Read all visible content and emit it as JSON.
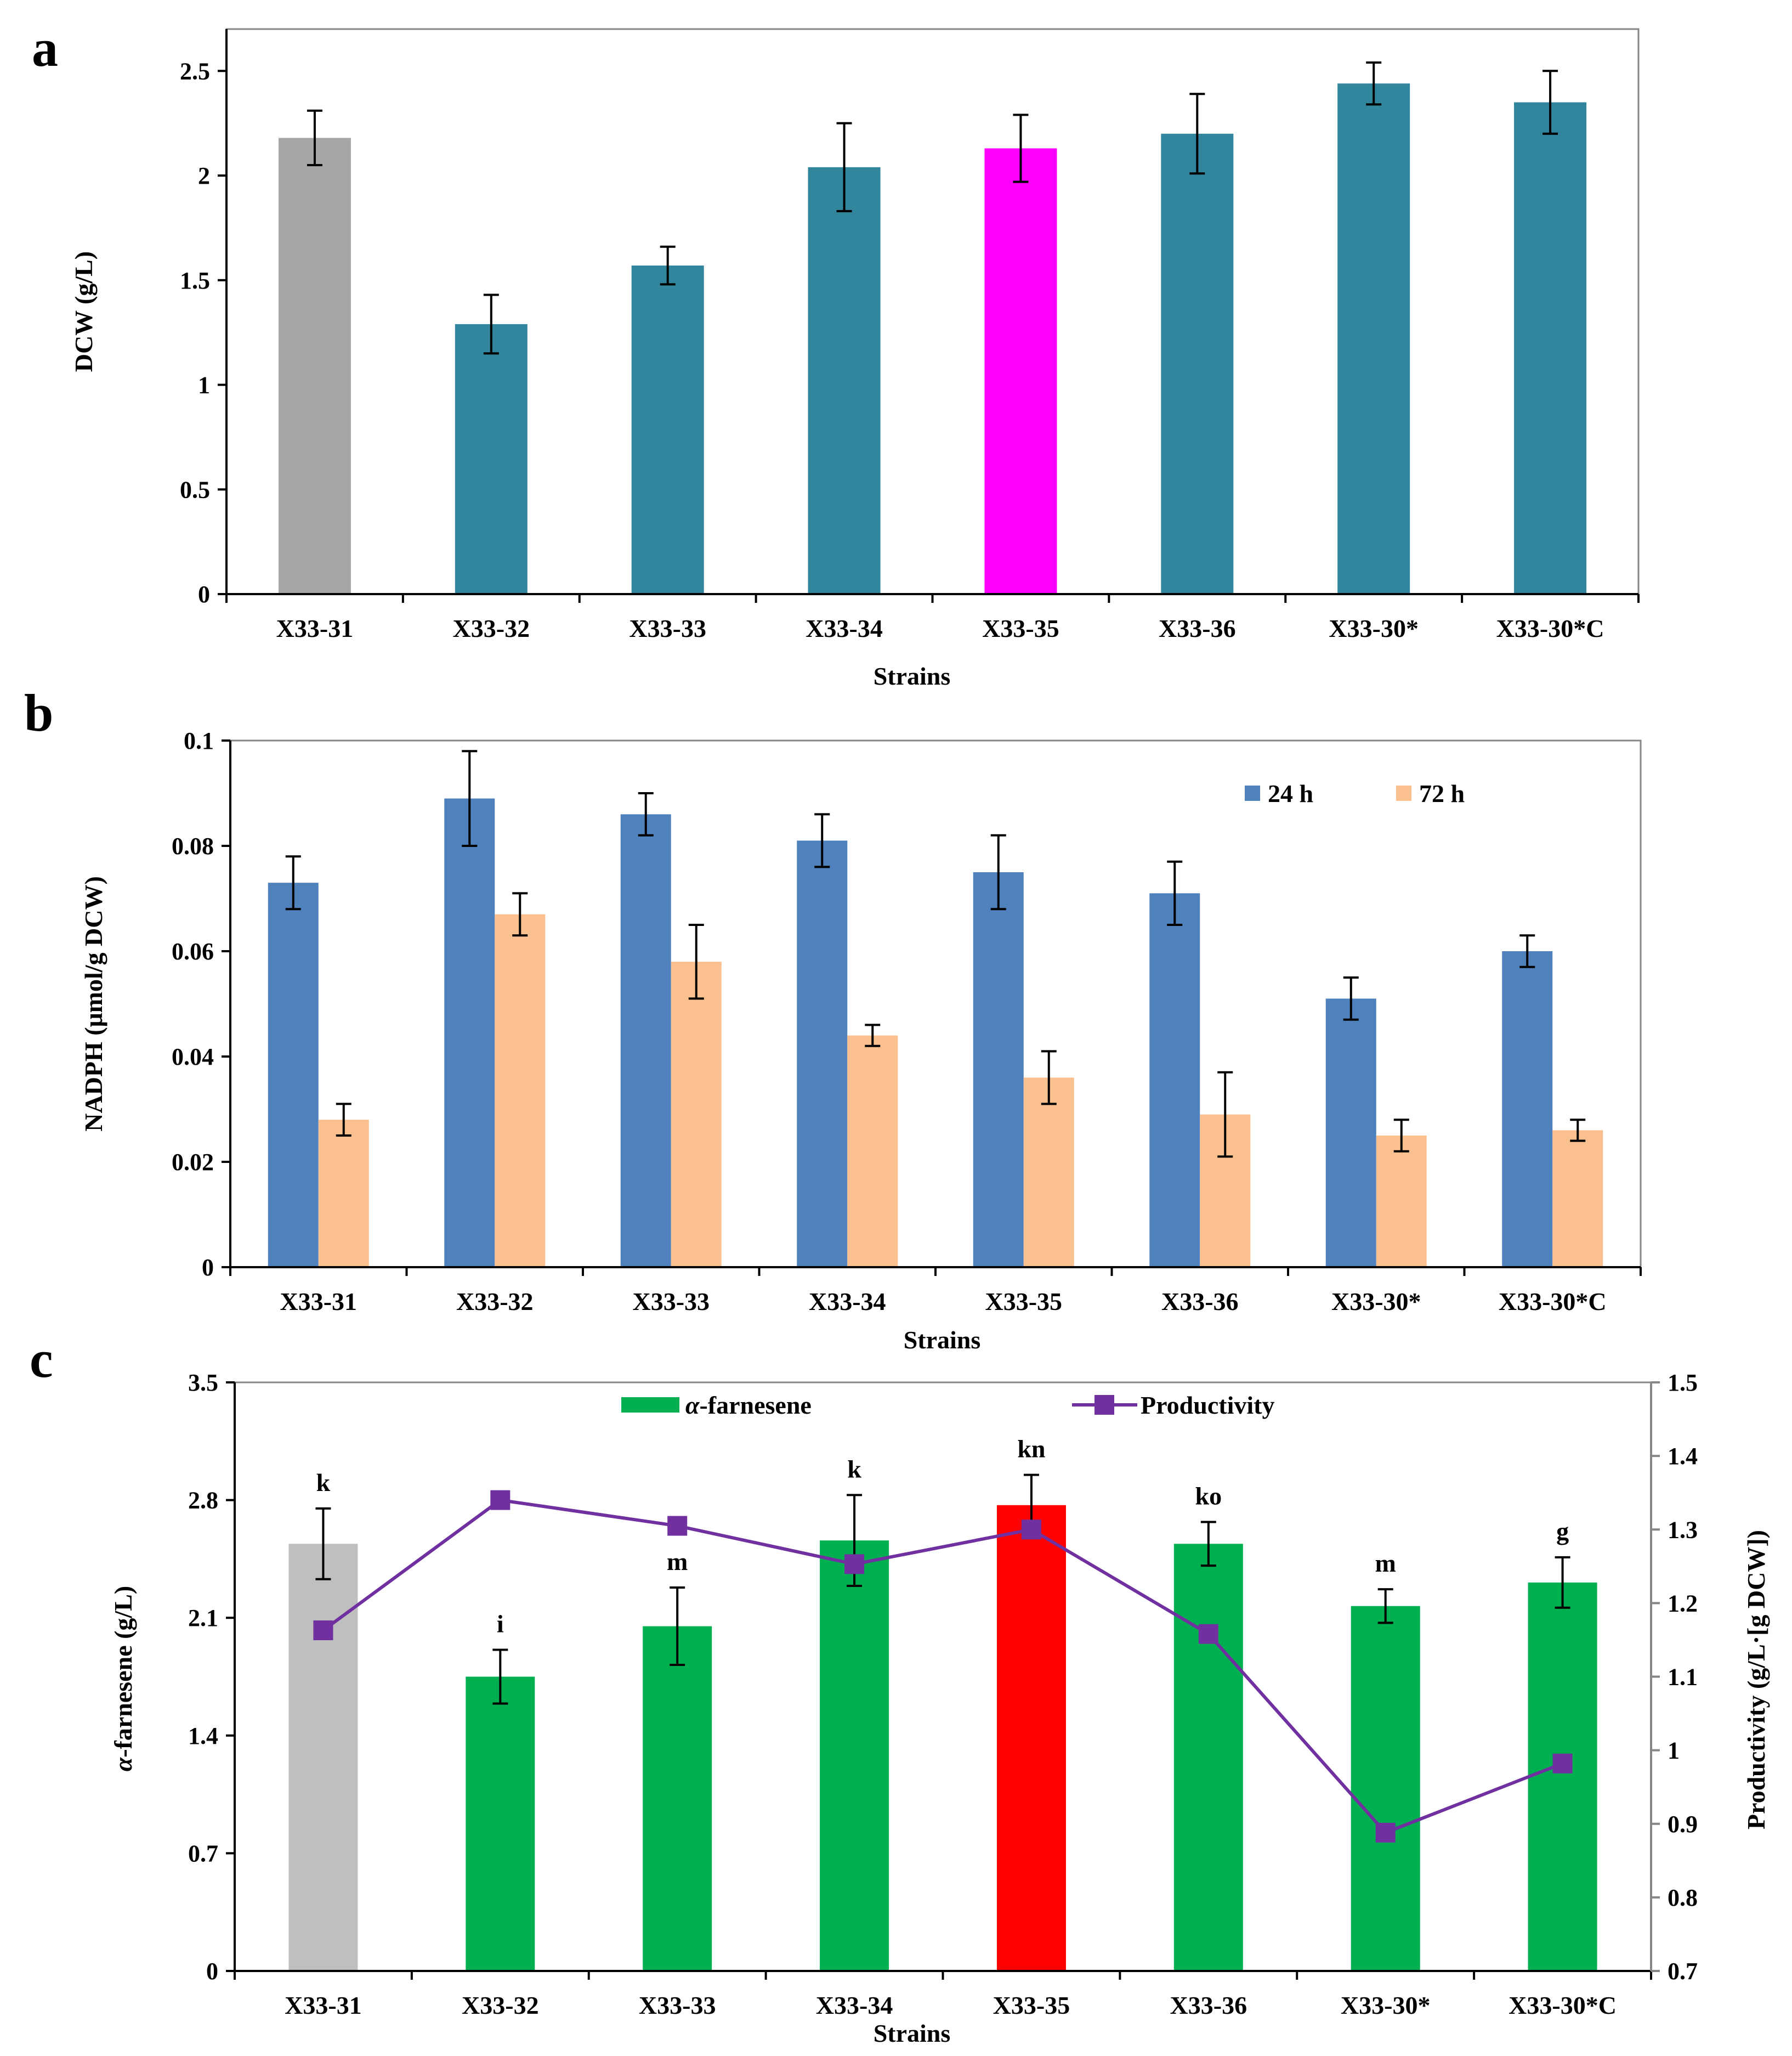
{
  "chart_data": [
    {
      "panel": "a",
      "type": "bar",
      "categories": [
        "X33-31",
        "X33-32",
        "X33-33",
        "X33-34",
        "X33-35",
        "X33-36",
        "X33-30*",
        "X33-30*C"
      ],
      "values": [
        2.18,
        1.29,
        1.57,
        2.04,
        2.13,
        2.2,
        2.44,
        2.35
      ],
      "errors": [
        0.13,
        0.14,
        0.09,
        0.21,
        0.16,
        0.19,
        0.1,
        0.15
      ],
      "bar_colors": [
        "#A6A6A6",
        "#31859C",
        "#31859C",
        "#31859C",
        "#FF00FF",
        "#31859C",
        "#31859C",
        "#31859C"
      ],
      "ylabel": "DCW (g/L)",
      "xlabel": "Strains",
      "ylim": [
        0,
        2.7
      ],
      "yticks": [
        0,
        0.5,
        1,
        1.5,
        2,
        2.5
      ],
      "ytick_labels": [
        "0",
        "0.5",
        "1",
        "1.5",
        "2",
        "2.5"
      ],
      "grid": false
    },
    {
      "panel": "b",
      "type": "bar",
      "categories": [
        "X33-31",
        "X33-32",
        "X33-33",
        "X33-34",
        "X33-35",
        "X33-36",
        "X33-30*",
        "X33-30*C"
      ],
      "series": [
        {
          "name": "24 h",
          "color": "#4F81BD",
          "values": [
            0.073,
            0.089,
            0.086,
            0.081,
            0.075,
            0.071,
            0.051,
            0.06
          ],
          "errors": [
            0.005,
            0.009,
            0.004,
            0.005,
            0.007,
            0.006,
            0.004,
            0.003
          ]
        },
        {
          "name": "72 h",
          "color": "#FAC090",
          "values": [
            0.028,
            0.067,
            0.058,
            0.044,
            0.036,
            0.029,
            0.025,
            0.026
          ],
          "errors": [
            0.003,
            0.004,
            0.007,
            0.002,
            0.005,
            0.008,
            0.003,
            0.002
          ]
        }
      ],
      "ylabel": "NADPH (μmol/g DCW)",
      "xlabel": "Strains",
      "ylim": [
        0,
        0.1
      ],
      "yticks": [
        0,
        0.02,
        0.04,
        0.06,
        0.08,
        0.1
      ],
      "ytick_labels": [
        "0",
        "0.02",
        "0.04",
        "0.06",
        "0.08",
        "0.1"
      ],
      "legend": "top-right",
      "grid": false
    },
    {
      "panel": "c",
      "type": "bar",
      "categories": [
        "X33-31",
        "X33-32",
        "X33-33",
        "X33-34",
        "X33-35",
        "X33-36",
        "X33-30*",
        "X33-30*C"
      ],
      "bar_series": {
        "name": "α-farnesene",
        "color": "#00B050",
        "values": [
          2.54,
          1.75,
          2.05,
          2.56,
          2.77,
          2.54,
          2.17,
          2.31
        ],
        "errors": [
          0.21,
          0.16,
          0.23,
          0.27,
          0.18,
          0.13,
          0.1,
          0.15
        ],
        "bar_colors": [
          "#BFBFBF",
          "#00B050",
          "#00B050",
          "#00B050",
          "#FF0000",
          "#00B050",
          "#00B050",
          "#00B050"
        ],
        "significance": [
          "k",
          "i",
          "m",
          "k",
          "kn",
          "ko",
          "m",
          "g"
        ]
      },
      "line_series": {
        "name": "Productivity",
        "color": "#7030A0",
        "values": [
          1.163,
          1.34,
          1.305,
          1.253,
          1.3,
          1.158,
          0.888,
          0.982
        ]
      },
      "ylabel": "α-farnesene (g/L)",
      "ylabel_prefix": "α",
      "ylabel_rest": "-farnesene (g/L)",
      "y2label": "Productivity (g/L·[g DCW])",
      "xlabel": "Strains",
      "ylim": [
        0,
        3.5
      ],
      "yticks": [
        0,
        0.7,
        1.4,
        2.1,
        2.8,
        3.5
      ],
      "ytick_labels": [
        "0",
        "0.7",
        "1.4",
        "2.1",
        "2.8",
        "3.5"
      ],
      "y2lim": [
        0.7,
        1.5
      ],
      "y2ticks": [
        0.7,
        0.8,
        0.9,
        1.0,
        1.1,
        1.2,
        1.3,
        1.4,
        1.5
      ],
      "y2tick_labels": [
        "0.7",
        "0.8",
        "0.9",
        "1",
        "1.1",
        "1.2",
        "1.3",
        "1.4",
        "1.5"
      ],
      "legend": "top",
      "grid": false
    }
  ],
  "panel_labels": [
    "a",
    "b",
    "c"
  ]
}
